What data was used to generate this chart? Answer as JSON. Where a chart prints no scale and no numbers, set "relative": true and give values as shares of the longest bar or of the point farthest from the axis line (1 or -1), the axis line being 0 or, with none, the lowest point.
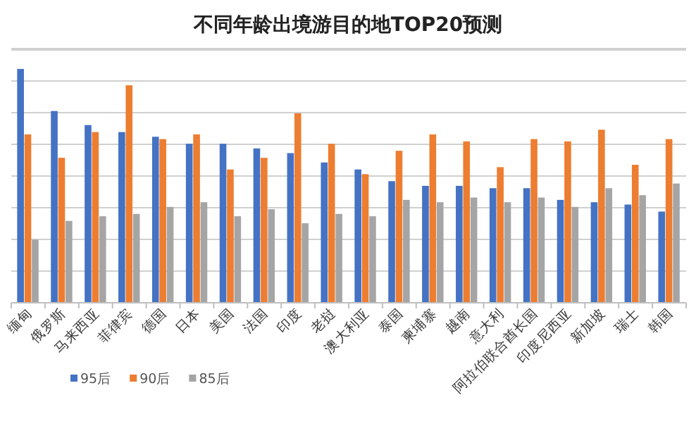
{
  "chart_data": {
    "type": "bar",
    "title": "不同年龄出境游目的地TOP20预测",
    "relative": true,
    "grid": "y",
    "legend": "bottom",
    "categories": [
      "缅甸",
      "俄罗斯",
      "马来西亚",
      "菲律宾",
      "德国",
      "日本",
      "美国",
      "法国",
      "印度",
      "老挝",
      "澳大利亚",
      "泰国",
      "柬埔寨",
      "越南",
      "意大利",
      "阿拉伯联合酋长国",
      "印度尼西亚",
      "新加坡",
      "瑞士",
      "韩国"
    ],
    "series": [
      {
        "name": "95后",
        "color": "#4472c4",
        "values": [
          1.0,
          0.82,
          0.76,
          0.73,
          0.71,
          0.68,
          0.68,
          0.66,
          0.64,
          0.6,
          0.57,
          0.52,
          0.5,
          0.5,
          0.49,
          0.49,
          0.44,
          0.43,
          0.42,
          0.39
        ]
      },
      {
        "name": "90后",
        "color": "#ed7d31",
        "values": [
          0.72,
          0.62,
          0.73,
          0.93,
          0.7,
          0.72,
          0.57,
          0.62,
          0.81,
          0.68,
          0.55,
          0.65,
          0.72,
          0.69,
          0.58,
          0.7,
          0.69,
          0.74,
          0.59,
          0.7
        ]
      },
      {
        "name": "85后",
        "color": "#a5a5a5",
        "values": [
          0.27,
          0.35,
          0.37,
          0.38,
          0.41,
          0.43,
          0.37,
          0.4,
          0.34,
          0.38,
          0.37,
          0.44,
          0.43,
          0.45,
          0.43,
          0.45,
          0.41,
          0.49,
          0.46,
          0.51
        ]
      }
    ]
  }
}
